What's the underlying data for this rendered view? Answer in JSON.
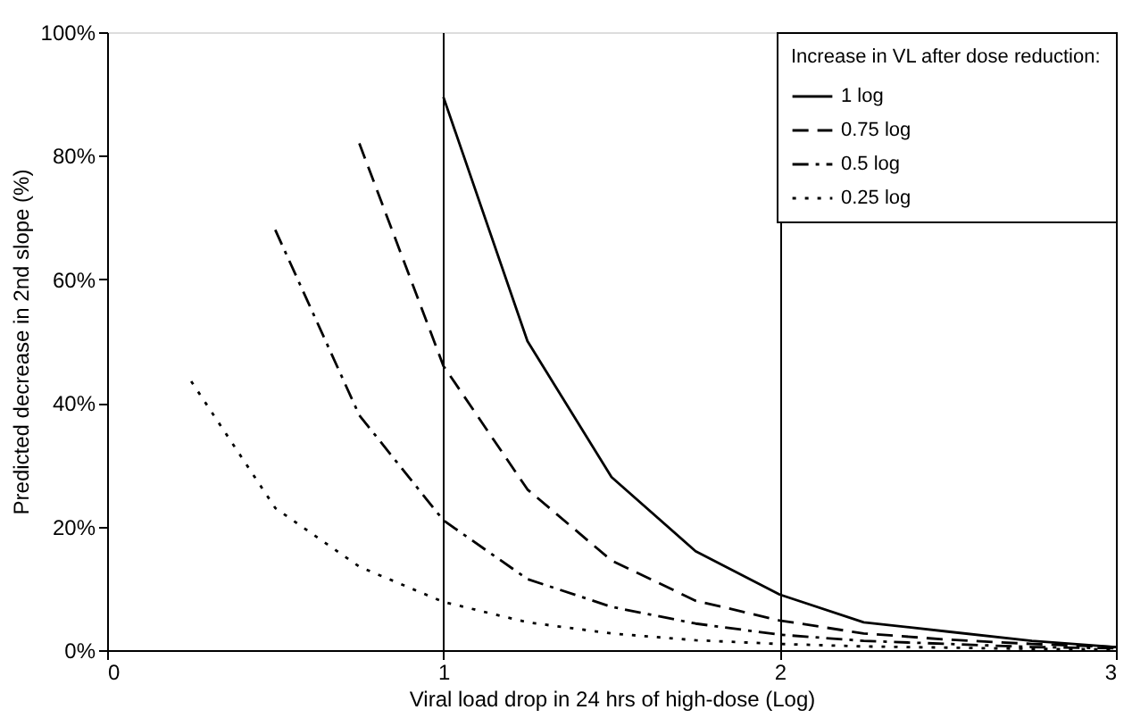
{
  "chart_data": {
    "type": "line",
    "xlabel": "Viral load drop in 24 hrs of high-dose (Log)",
    "ylabel": "Predicted decrease in 2nd slope (%)",
    "legend_title": "Increase in VL after dose reduction:",
    "legend": "top right",
    "grid": "x",
    "xlim": [
      0,
      3
    ],
    "xticks": [
      0,
      1,
      2,
      3
    ],
    "ylim": [
      0,
      100
    ],
    "yticks": [
      {
        "value": 0,
        "label": "0%"
      },
      {
        "value": 20,
        "label": "20%"
      },
      {
        "value": 40,
        "label": "40%"
      },
      {
        "value": 60,
        "label": "60%"
      },
      {
        "value": 80,
        "label": "80%"
      },
      {
        "value": 100,
        "label": "100%"
      }
    ],
    "series": [
      {
        "name": "1 log",
        "color": "#000000",
        "line_style": "solid",
        "x": [
          1,
          1.25,
          1.5,
          1.75,
          2,
          2.25,
          2.5,
          2.75,
          3
        ],
        "values": [
          89.5,
          50,
          28,
          16,
          9,
          4.5,
          3,
          1.5,
          0.5
        ]
      },
      {
        "name": "0.75 log",
        "color": "#000000",
        "line_style": "dashed",
        "x": [
          0.75,
          1,
          1.25,
          1.5,
          1.75,
          2,
          2.25,
          2.5,
          2.75,
          3
        ],
        "values": [
          82,
          46,
          26,
          14.5,
          8,
          4.8,
          2.7,
          1.7,
          1,
          0.5
        ]
      },
      {
        "name": "0.5 log",
        "color": "#000000",
        "line_style": "dashdot",
        "x": [
          0.5,
          0.75,
          1,
          1.25,
          1.5,
          1.75,
          2,
          2.25,
          2.5,
          2.75,
          3
        ],
        "values": [
          68,
          38,
          21,
          11.5,
          7,
          4.3,
          2.5,
          1.5,
          1,
          0.5,
          0.3
        ]
      },
      {
        "name": "0.25 log",
        "color": "#000000",
        "line_style": "dotted",
        "x": [
          0.25,
          0.5,
          0.75,
          1,
          1.25,
          1.5,
          1.75,
          2,
          2.25,
          2.5,
          2.75,
          3
        ],
        "values": [
          43.5,
          23,
          13.5,
          7.8,
          4.5,
          2.7,
          1.6,
          1,
          0.6,
          0.4,
          0.2,
          0.1
        ]
      }
    ]
  }
}
